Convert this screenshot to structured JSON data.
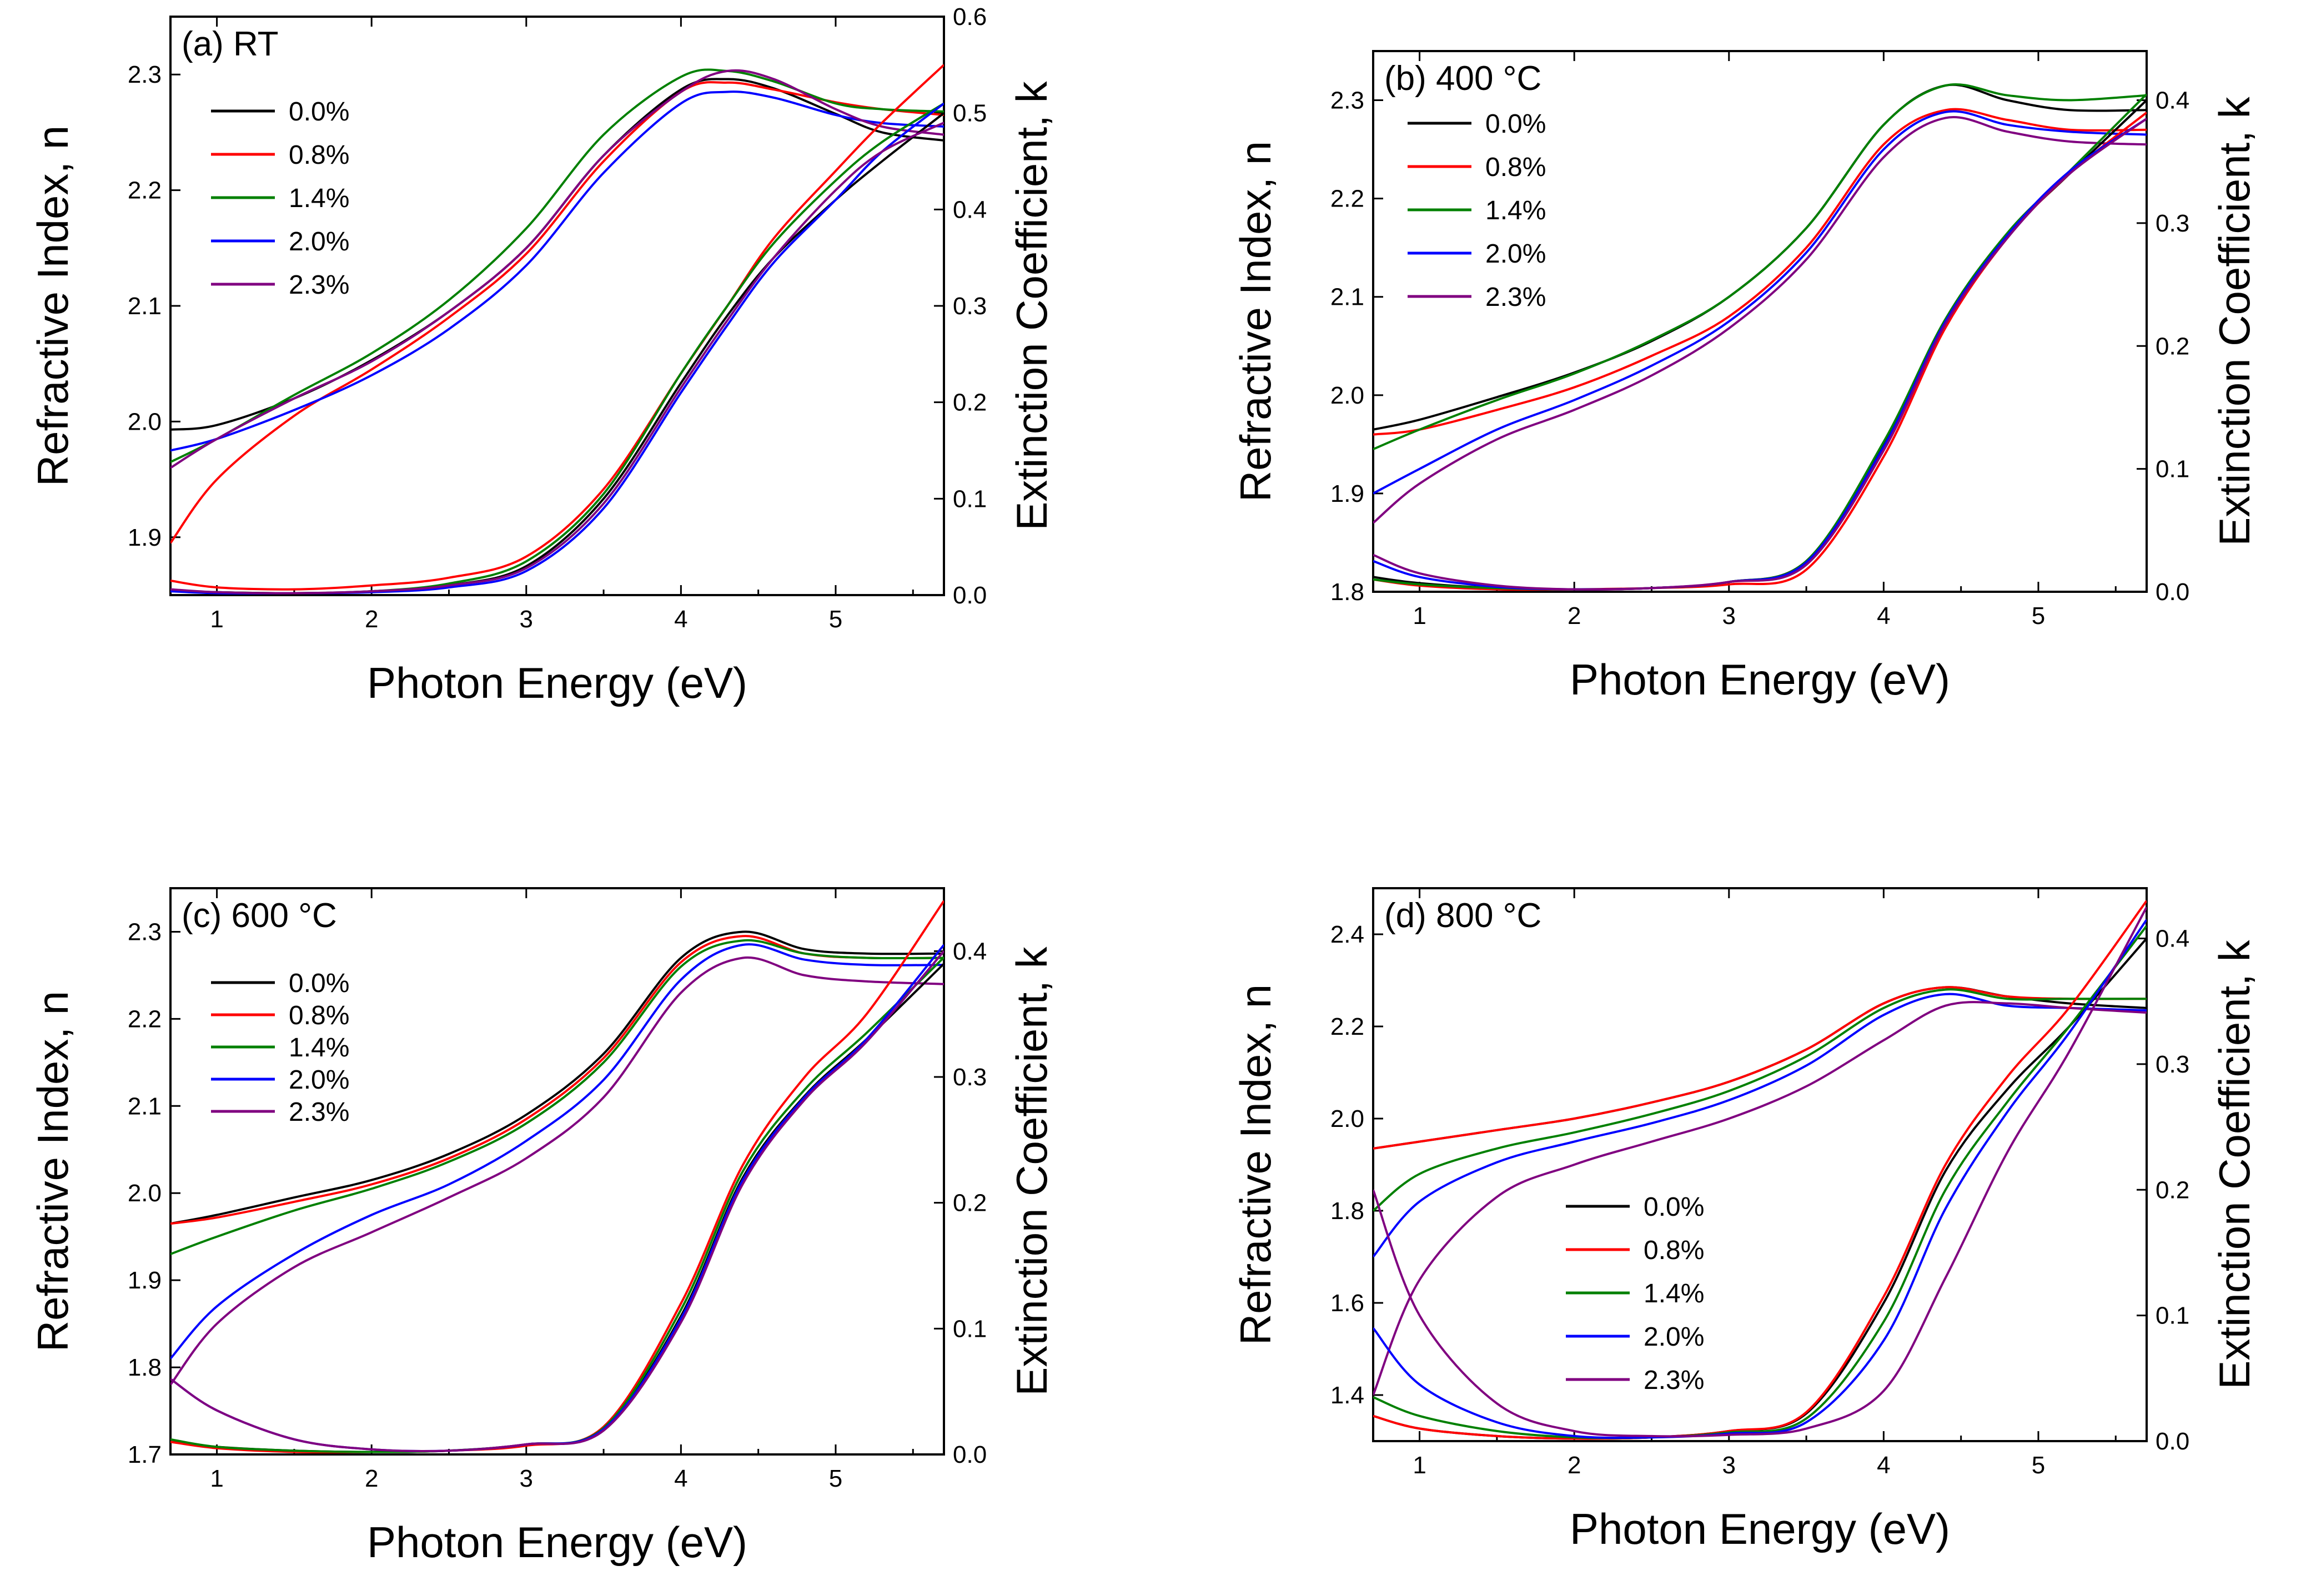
{
  "figure": {
    "description_layout": "2x2 grid of dual-axis line charts"
  },
  "colors": {
    "0.0%": "#000000",
    "0.8%": "#ff0000",
    "1.4%": "#008000",
    "2.0%": "#0000ff",
    "2.3%": "#800080"
  },
  "chart_data": [
    {
      "type": "line",
      "panel_label": "(a) RT",
      "xlabel": "Photon Energy (eV)",
      "ylabel_left": "Refractive Index, n",
      "ylabel_right": "Extinction Coefficient, k",
      "xlim": [
        0.7,
        5.7
      ],
      "ylim_left": [
        1.85,
        2.35
      ],
      "ylim_right": [
        0.0,
        0.6
      ],
      "xticks": [
        1,
        2,
        3,
        4,
        5
      ],
      "yticks_left": [
        1.9,
        2.0,
        2.1,
        2.2,
        2.3
      ],
      "yticks_right": [
        0.0,
        0.1,
        0.2,
        0.3,
        0.4,
        0.5,
        0.6
      ],
      "legend": [
        "0.0%",
        "0.8%",
        "1.4%",
        "2.0%",
        "2.3%"
      ],
      "legend_position": "top-left",
      "x": [
        0.7,
        1.0,
        1.5,
        2.0,
        2.5,
        3.0,
        3.5,
        4.0,
        4.3,
        4.6,
        5.0,
        5.3,
        5.7
      ],
      "series_n": [
        {
          "name": "0.0%",
          "values": [
            1.993,
            1.997,
            2.02,
            2.053,
            2.095,
            2.15,
            2.23,
            2.287,
            2.296,
            2.288,
            2.266,
            2.25,
            2.243
          ]
        },
        {
          "name": "0.8%",
          "values": [
            1.895,
            1.95,
            2.005,
            2.045,
            2.09,
            2.145,
            2.225,
            2.285,
            2.293,
            2.287,
            2.276,
            2.27,
            2.265
          ]
        },
        {
          "name": "1.4%",
          "values": [
            1.965,
            1.985,
            2.023,
            2.059,
            2.105,
            2.167,
            2.248,
            2.298,
            2.303,
            2.294,
            2.275,
            2.27,
            2.268
          ]
        },
        {
          "name": "2.0%",
          "values": [
            1.975,
            1.985,
            2.01,
            2.04,
            2.08,
            2.135,
            2.215,
            2.275,
            2.285,
            2.28,
            2.265,
            2.258,
            2.255
          ]
        },
        {
          "name": "2.3%",
          "values": [
            1.96,
            1.985,
            2.02,
            2.052,
            2.095,
            2.15,
            2.23,
            2.285,
            2.303,
            2.296,
            2.27,
            2.255,
            2.248
          ]
        }
      ],
      "series_k": [
        {
          "name": "0.0%",
          "values": [
            0.005,
            0.003,
            0.002,
            0.004,
            0.01,
            0.03,
            0.1,
            0.22,
            0.29,
            0.35,
            0.41,
            0.45,
            0.5
          ]
        },
        {
          "name": "0.8%",
          "values": [
            0.015,
            0.008,
            0.006,
            0.01,
            0.018,
            0.04,
            0.11,
            0.23,
            0.3,
            0.37,
            0.44,
            0.49,
            0.55
          ]
        },
        {
          "name": "1.4%",
          "values": [
            0.005,
            0.003,
            0.002,
            0.004,
            0.012,
            0.035,
            0.105,
            0.23,
            0.3,
            0.365,
            0.43,
            0.47,
            0.51
          ]
        },
        {
          "name": "2.0%",
          "values": [
            0.004,
            0.002,
            0.002,
            0.003,
            0.008,
            0.025,
            0.09,
            0.21,
            0.28,
            0.345,
            0.41,
            0.46,
            0.51
          ]
        },
        {
          "name": "2.3%",
          "values": [
            0.006,
            0.003,
            0.002,
            0.004,
            0.01,
            0.028,
            0.095,
            0.215,
            0.285,
            0.35,
            0.42,
            0.46,
            0.49
          ]
        }
      ]
    },
    {
      "type": "line",
      "panel_label": "(b) 400 °C",
      "xlabel": "Photon Energy (eV)",
      "ylabel_left": "Refractive Index, n",
      "ylabel_right": "Extinction Coefficient, k",
      "xlim": [
        0.7,
        5.7
      ],
      "ylim_left": [
        1.8,
        2.35
      ],
      "ylim_right": [
        0.0,
        0.44
      ],
      "xticks": [
        1,
        2,
        3,
        4,
        5
      ],
      "yticks_left": [
        1.8,
        1.9,
        2.0,
        2.1,
        2.2,
        2.3
      ],
      "yticks_right": [
        0.0,
        0.1,
        0.2,
        0.3,
        0.4
      ],
      "legend": [
        "0.0%",
        "0.8%",
        "1.4%",
        "2.0%",
        "2.3%"
      ],
      "legend_position": "top-left",
      "x": [
        0.7,
        1.0,
        1.5,
        2.0,
        2.5,
        3.0,
        3.5,
        4.0,
        4.4,
        4.8,
        5.2,
        5.7
      ],
      "series_n": [
        {
          "name": "0.0%",
          "values": [
            1.965,
            1.975,
            1.998,
            2.023,
            2.055,
            2.1,
            2.17,
            2.275,
            2.315,
            2.3,
            2.29,
            2.29
          ]
        },
        {
          "name": "0.8%",
          "values": [
            1.96,
            1.965,
            1.985,
            2.008,
            2.04,
            2.08,
            2.15,
            2.255,
            2.29,
            2.28,
            2.27,
            2.27
          ]
        },
        {
          "name": "1.4%",
          "values": [
            1.945,
            1.965,
            1.995,
            2.022,
            2.056,
            2.1,
            2.17,
            2.275,
            2.315,
            2.305,
            2.3,
            2.305
          ]
        },
        {
          "name": "2.0%",
          "values": [
            1.9,
            1.925,
            1.965,
            1.995,
            2.03,
            2.075,
            2.145,
            2.25,
            2.288,
            2.275,
            2.268,
            2.265
          ]
        },
        {
          "name": "2.3%",
          "values": [
            1.87,
            1.91,
            1.955,
            1.985,
            2.02,
            2.068,
            2.138,
            2.242,
            2.282,
            2.268,
            2.258,
            2.255
          ]
        }
      ],
      "series_k": [
        {
          "name": "0.0%",
          "values": [
            0.012,
            0.007,
            0.003,
            0.002,
            0.003,
            0.008,
            0.025,
            0.12,
            0.22,
            0.29,
            0.34,
            0.4
          ]
        },
        {
          "name": "0.8%",
          "values": [
            0.01,
            0.005,
            0.002,
            0.002,
            0.003,
            0.006,
            0.018,
            0.11,
            0.215,
            0.288,
            0.34,
            0.39
          ]
        },
        {
          "name": "1.4%",
          "values": [
            0.01,
            0.006,
            0.003,
            0.002,
            0.003,
            0.008,
            0.025,
            0.122,
            0.222,
            0.292,
            0.342,
            0.405
          ]
        },
        {
          "name": "2.0%",
          "values": [
            0.025,
            0.012,
            0.004,
            0.002,
            0.003,
            0.008,
            0.024,
            0.118,
            0.22,
            0.29,
            0.342,
            0.385
          ]
        },
        {
          "name": "2.3%",
          "values": [
            0.03,
            0.015,
            0.005,
            0.002,
            0.003,
            0.008,
            0.022,
            0.115,
            0.218,
            0.288,
            0.34,
            0.385
          ]
        }
      ]
    },
    {
      "type": "line",
      "panel_label": "(c) 600 °C",
      "xlabel": "Photon Energy (eV)",
      "ylabel_left": "Refractive Index, n",
      "ylabel_right": "Extinction Coefficient, k",
      "xlim": [
        0.7,
        5.7
      ],
      "ylim_left": [
        1.7,
        2.35
      ],
      "ylim_right": [
        0.0,
        0.45
      ],
      "xticks": [
        1,
        2,
        3,
        4,
        5
      ],
      "yticks_left": [
        1.7,
        1.8,
        1.9,
        2.0,
        2.1,
        2.2,
        2.3
      ],
      "yticks_right": [
        0.0,
        0.1,
        0.2,
        0.3,
        0.4
      ],
      "legend": [
        "0.0%",
        "0.8%",
        "1.4%",
        "2.0%",
        "2.3%"
      ],
      "legend_position": "top-left",
      "x": [
        0.7,
        1.0,
        1.5,
        2.0,
        2.5,
        3.0,
        3.5,
        4.0,
        4.4,
        4.8,
        5.2,
        5.7
      ],
      "series_n": [
        {
          "name": "0.0%",
          "values": [
            1.965,
            1.975,
            1.995,
            2.015,
            2.045,
            2.09,
            2.16,
            2.27,
            2.3,
            2.28,
            2.275,
            2.275
          ]
        },
        {
          "name": "0.8%",
          "values": [
            1.965,
            1.972,
            1.99,
            2.01,
            2.04,
            2.085,
            2.155,
            2.265,
            2.295,
            2.275,
            2.27,
            2.27
          ]
        },
        {
          "name": "1.4%",
          "values": [
            1.93,
            1.95,
            1.98,
            2.005,
            2.036,
            2.08,
            2.15,
            2.26,
            2.29,
            2.275,
            2.27,
            2.27
          ]
        },
        {
          "name": "2.0%",
          "values": [
            1.81,
            1.87,
            1.93,
            1.975,
            2.01,
            2.06,
            2.13,
            2.245,
            2.285,
            2.268,
            2.262,
            2.262
          ]
        },
        {
          "name": "2.3%",
          "values": [
            1.78,
            1.85,
            1.915,
            1.955,
            1.995,
            2.04,
            2.11,
            2.23,
            2.27,
            2.25,
            2.243,
            2.24
          ]
        }
      ],
      "series_k": [
        {
          "name": "0.0%",
          "values": [
            0.01,
            0.006,
            0.003,
            0.002,
            0.003,
            0.008,
            0.02,
            0.11,
            0.22,
            0.285,
            0.33,
            0.39
          ]
        },
        {
          "name": "0.8%",
          "values": [
            0.01,
            0.005,
            0.002,
            0.002,
            0.003,
            0.007,
            0.022,
            0.12,
            0.23,
            0.3,
            0.35,
            0.44
          ]
        },
        {
          "name": "1.4%",
          "values": [
            0.012,
            0.006,
            0.003,
            0.002,
            0.003,
            0.008,
            0.021,
            0.115,
            0.225,
            0.29,
            0.335,
            0.395
          ]
        },
        {
          "name": "2.0%",
          "values": [
            0.06,
            0.035,
            0.012,
            0.004,
            0.003,
            0.008,
            0.02,
            0.108,
            0.218,
            0.284,
            0.33,
            0.405
          ]
        },
        {
          "name": "2.3%",
          "values": [
            0.06,
            0.035,
            0.012,
            0.004,
            0.003,
            0.008,
            0.019,
            0.105,
            0.215,
            0.282,
            0.328,
            0.4
          ]
        }
      ]
    },
    {
      "type": "line",
      "panel_label": "(d) 800 °C",
      "xlabel": "Photon Energy (eV)",
      "ylabel_left": "Refractive Index, n",
      "ylabel_right": "Extinction Coefficient, k",
      "xlim": [
        0.7,
        5.7
      ],
      "ylim_left": [
        1.3,
        2.5
      ],
      "ylim_right": [
        0.0,
        0.44
      ],
      "xticks": [
        1,
        2,
        3,
        4,
        5
      ],
      "yticks_left": [
        1.4,
        1.6,
        1.8,
        2.0,
        2.2,
        2.4
      ],
      "yticks_right": [
        0.0,
        0.1,
        0.2,
        0.3,
        0.4
      ],
      "legend": [
        "0.0%",
        "0.8%",
        "1.4%",
        "2.0%",
        "2.3%"
      ],
      "legend_position": "center",
      "x": [
        0.7,
        1.0,
        1.5,
        2.0,
        2.5,
        3.0,
        3.5,
        4.0,
        4.4,
        4.8,
        5.2,
        5.7
      ],
      "series_n": [
        {
          "name": "0.0%",
          "values": [
            1.935,
            1.95,
            1.975,
            2.0,
            2.035,
            2.08,
            2.15,
            2.25,
            2.285,
            2.265,
            2.25,
            2.24
          ]
        },
        {
          "name": "0.8%",
          "values": [
            1.935,
            1.95,
            1.975,
            2.0,
            2.035,
            2.08,
            2.15,
            2.25,
            2.285,
            2.265,
            2.26,
            2.26
          ]
        },
        {
          "name": "1.4%",
          "values": [
            1.8,
            1.88,
            1.935,
            1.97,
            2.01,
            2.06,
            2.135,
            2.24,
            2.28,
            2.26,
            2.26,
            2.26
          ]
        },
        {
          "name": "2.0%",
          "values": [
            1.7,
            1.82,
            1.905,
            1.95,
            1.99,
            2.04,
            2.115,
            2.225,
            2.27,
            2.245,
            2.24,
            2.235
          ]
        },
        {
          "name": "2.3%",
          "values": [
            1.4,
            1.65,
            1.83,
            1.9,
            1.95,
            2.0,
            2.07,
            2.17,
            2.245,
            2.25,
            2.24,
            2.23
          ]
        }
      ],
      "series_k": [
        {
          "name": "0.0%",
          "values": [
            0.02,
            0.01,
            0.004,
            0.002,
            0.003,
            0.008,
            0.022,
            0.11,
            0.215,
            0.28,
            0.33,
            0.4
          ]
        },
        {
          "name": "0.8%",
          "values": [
            0.02,
            0.01,
            0.004,
            0.002,
            0.003,
            0.008,
            0.023,
            0.115,
            0.22,
            0.29,
            0.345,
            0.43
          ]
        },
        {
          "name": "1.4%",
          "values": [
            0.035,
            0.02,
            0.008,
            0.003,
            0.003,
            0.007,
            0.018,
            0.095,
            0.2,
            0.27,
            0.33,
            0.41
          ]
        },
        {
          "name": "2.0%",
          "values": [
            0.09,
            0.045,
            0.015,
            0.004,
            0.003,
            0.006,
            0.015,
            0.08,
            0.185,
            0.262,
            0.325,
            0.415
          ]
        },
        {
          "name": "2.3%",
          "values": [
            0.2,
            0.1,
            0.03,
            0.008,
            0.004,
            0.005,
            0.01,
            0.04,
            0.13,
            0.23,
            0.31,
            0.425
          ]
        }
      ]
    }
  ]
}
